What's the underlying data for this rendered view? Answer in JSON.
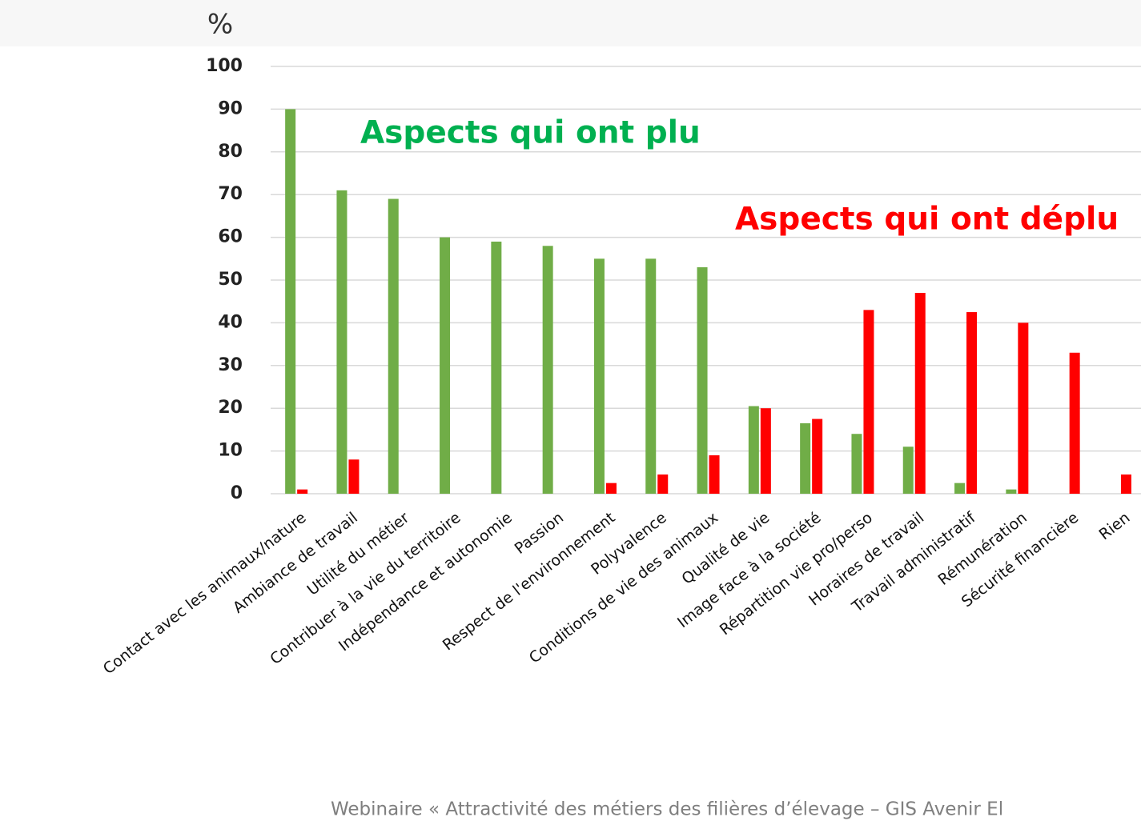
{
  "chart_data": {
    "type": "bar",
    "ylabel": "%",
    "categories": [
      "Contact avec les animaux/nature",
      "Ambiance de travail",
      "Utilité du métier",
      "Contribuer à la vie du territoire",
      "Indépendance et autonomie",
      "Passion",
      "Respect de l'environnement",
      "Polyvalence",
      "Conditions de vie des animaux",
      "Qualité de vie",
      "Image face à la société",
      "Répartition vie pro/perso",
      "Horaires de travail",
      "Travail administratif",
      "Rémunération",
      "Sécurité financière",
      "Rien"
    ],
    "series": [
      {
        "name": "Aspects qui ont plu",
        "color": "#70ad47",
        "values": [
          90,
          71,
          69,
          60,
          59,
          58,
          55,
          55,
          53,
          20.5,
          16.5,
          14,
          11,
          2.5,
          1,
          0,
          0
        ]
      },
      {
        "name": "Aspects qui ont déplu",
        "color": "#ff0000",
        "values": [
          1,
          8,
          0,
          0,
          0,
          0,
          2.5,
          4.5,
          9,
          20,
          17.5,
          43,
          47,
          42.5,
          40,
          33,
          4.5
        ]
      }
    ],
    "ylim": [
      0,
      100
    ],
    "yticks": [
      0,
      10,
      20,
      30,
      40,
      50,
      60,
      70,
      80,
      90,
      100
    ],
    "grid": true,
    "footer": "Webinaire « Attractivité des métiers des filières d’élevage – GIS Avenir El"
  }
}
